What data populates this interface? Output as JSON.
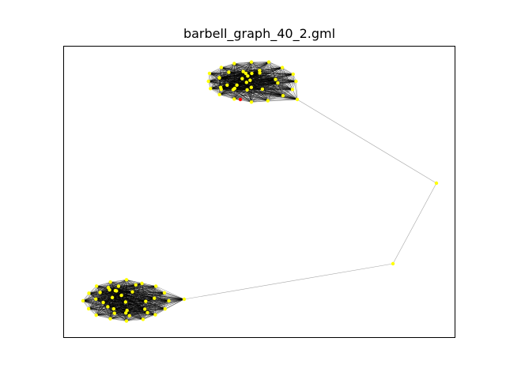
{
  "figure": {
    "title": "barbell_graph_40_2.gml"
  },
  "graph": {
    "type": "barbell",
    "clique_size": 40,
    "path_length": 2,
    "node_color": "#ffff00",
    "highlight_node_color": "#ff0000",
    "edge_color": "#000000",
    "frame_color": "#000000",
    "background": "#ffffff"
  }
}
